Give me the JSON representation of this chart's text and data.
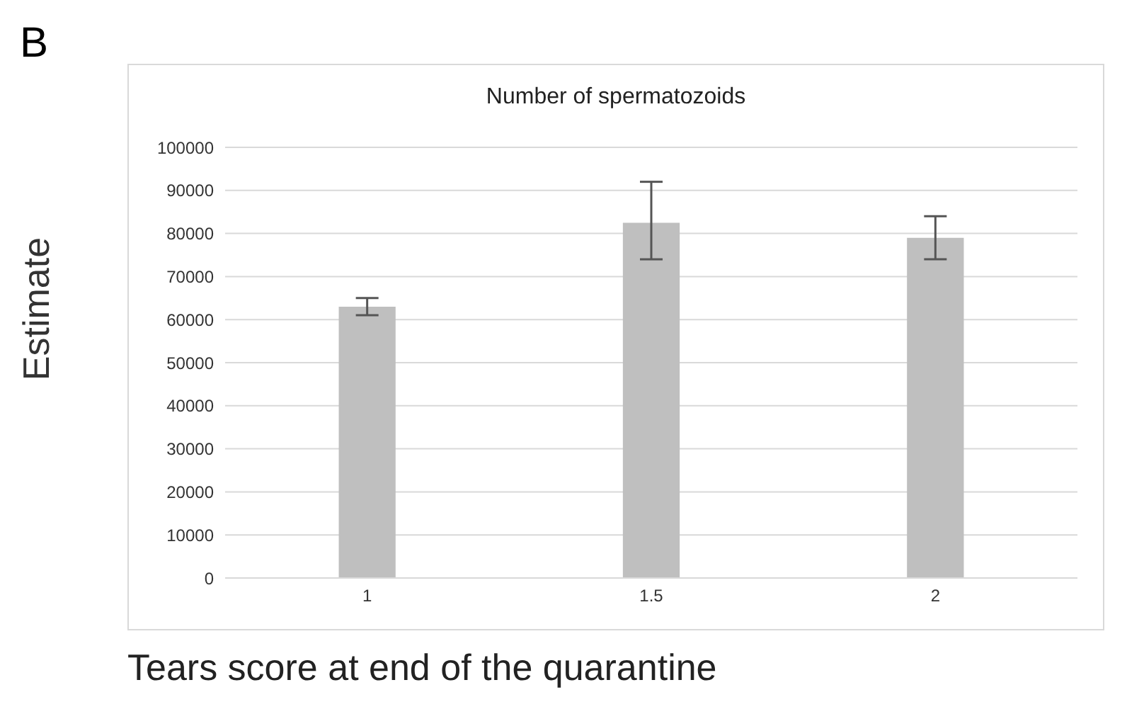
{
  "chart_data": {
    "type": "bar",
    "title": "Number of spermatozoids",
    "xlabel": "Tears score at end of the quarantine",
    "ylabel": "Estimate",
    "annotations": [
      "B"
    ],
    "categories": [
      "1",
      "1.5",
      "2"
    ],
    "values": [
      63000,
      82500,
      79000
    ],
    "color": "#bfbfbf",
    "errors": [
      [
        61000,
        65000
      ],
      [
        74000,
        92000
      ],
      [
        74000,
        84000
      ]
    ],
    "ylim": [
      0,
      100000
    ],
    "yticks": [
      0,
      10000,
      20000,
      30000,
      40000,
      50000,
      60000,
      70000,
      80000,
      90000,
      100000
    ],
    "grid": "y"
  }
}
